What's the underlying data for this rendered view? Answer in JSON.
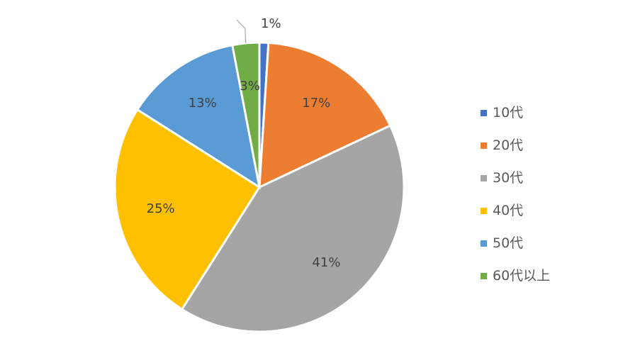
{
  "chart_data": {
    "type": "pie",
    "title": "",
    "categories": [
      "10代",
      "20代",
      "30代",
      "40代",
      "50代",
      "60代以上"
    ],
    "values": [
      1,
      17,
      41,
      25,
      13,
      3
    ],
    "data_labels": [
      "1%",
      "17%",
      "41%",
      "25%",
      "13%",
      "3%"
    ],
    "colors": [
      "#4472C4",
      "#ED7D31",
      "#A5A5A5",
      "#FFC000",
      "#5B9BD5",
      "#70AD47"
    ],
    "start_angle_deg": 0,
    "direction": "clockwise",
    "legend_position": "right"
  }
}
